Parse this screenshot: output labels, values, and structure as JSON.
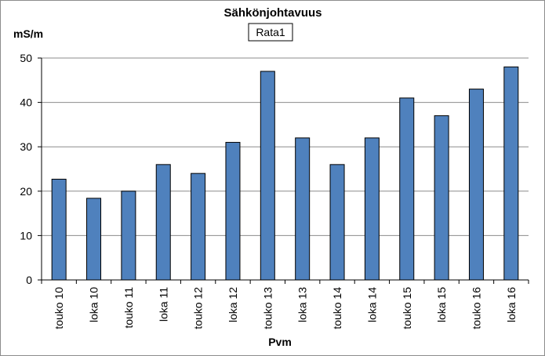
{
  "chart_data": {
    "type": "bar",
    "title": "Sähkönjohtavuus",
    "legend_label": "Rata1",
    "legend_position": "top-center",
    "ylabel": "mS/m",
    "xlabel": "Pvm",
    "ylim": [
      0,
      50
    ],
    "yticks": [
      0,
      10,
      20,
      30,
      40,
      50
    ],
    "grid": true,
    "categories": [
      "touko 10",
      "loka 10",
      "touko 11",
      "loka 11",
      "touko 12",
      "loka 12",
      "touko 13",
      "loka 13",
      "touko 14",
      "loka 14",
      "touko 15",
      "loka 15",
      "touko 16",
      "loka 16"
    ],
    "series": [
      {
        "name": "Rata1",
        "values": [
          22.7,
          18.4,
          20,
          26,
          24,
          31,
          47,
          32,
          26,
          32,
          41,
          37,
          43,
          48
        ],
        "color": "#4f81bd"
      }
    ]
  }
}
